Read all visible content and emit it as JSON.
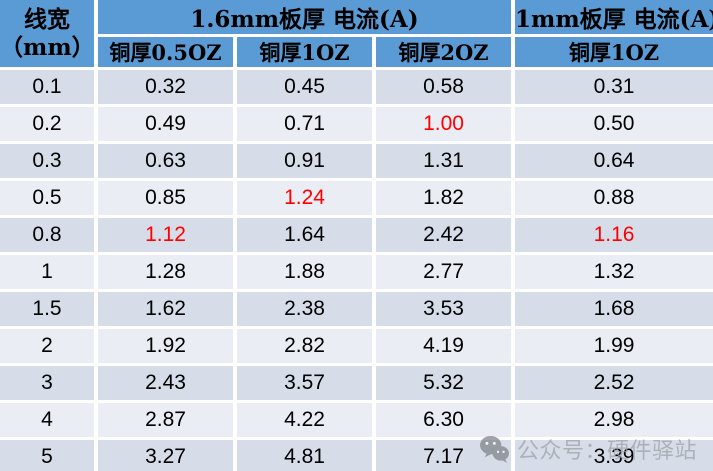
{
  "colors": {
    "header_bg": "#5B9BD5",
    "row_dark_bg": "#D6DDE9",
    "row_light_bg": "#EAEDF4",
    "grid_line": "#FFFFFF",
    "text": "#000000",
    "highlight_red": "#FF0000",
    "watermark_gray": "#9CA1A6"
  },
  "header": {
    "corner_line1": "线宽",
    "corner_line2": "（mm）",
    "group_1p6mm": "1.6mm板厚 电流(A)",
    "group_1mm": "1mm板厚 电流(A)",
    "sub_cols": [
      "铜厚0.5OZ",
      "铜厚1OZ",
      "铜厚2OZ",
      "铜厚1OZ"
    ]
  },
  "chart_data": {
    "type": "table",
    "row_header": "线宽（mm）",
    "column_groups": [
      {
        "label": "1.6mm板厚 电流(A)",
        "sub_columns": [
          "铜厚0.5OZ",
          "铜厚1OZ",
          "铜厚2OZ"
        ]
      },
      {
        "label": "1mm板厚 电流(A)",
        "sub_columns": [
          "铜厚1OZ"
        ]
      }
    ],
    "line_width_mm": [
      "0.1",
      "0.2",
      "0.3",
      "0.5",
      "0.8",
      "1",
      "1.5",
      "2",
      "3",
      "4",
      "5"
    ],
    "series": [
      {
        "name": "1.6mm板厚 铜厚0.5OZ 电流(A)",
        "values": [
          "0.32",
          "0.49",
          "0.63",
          "0.85",
          "1.12",
          "1.28",
          "1.62",
          "1.92",
          "2.43",
          "2.87",
          "3.27"
        ],
        "red_value_indices": [
          4
        ]
      },
      {
        "name": "1.6mm板厚 铜厚1OZ 电流(A)",
        "values": [
          "0.45",
          "0.71",
          "0.91",
          "1.24",
          "1.64",
          "1.88",
          "2.38",
          "2.82",
          "3.57",
          "4.22",
          "4.81"
        ],
        "red_value_indices": [
          3
        ]
      },
      {
        "name": "1.6mm板厚 铜厚2OZ 电流(A)",
        "values": [
          "0.58",
          "1.00",
          "1.31",
          "1.82",
          "2.42",
          "2.77",
          "3.53",
          "4.19",
          "5.32",
          "6.30",
          "7.17"
        ],
        "red_value_indices": [
          1
        ]
      },
      {
        "name": "1mm板厚 铜厚1OZ 电流(A)",
        "values": [
          "0.31",
          "0.50",
          "0.64",
          "0.88",
          "1.16",
          "1.32",
          "1.68",
          "1.99",
          "2.52",
          "2.98",
          "3.39"
        ],
        "red_value_indices": [
          4
        ]
      }
    ]
  },
  "watermark": {
    "icon": "wechat-icon",
    "text": "公众号：硬件驿站"
  }
}
